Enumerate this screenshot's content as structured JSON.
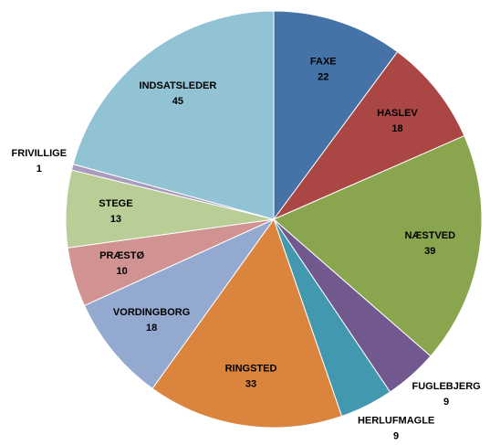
{
  "chart_data": {
    "type": "pie",
    "categories": [
      "FAXE",
      "HASLEV",
      "NÆSTVED",
      "FUGLEBJERG",
      "HERLUFMAGLE",
      "RINGSTED",
      "VORDINGBORG",
      "PRÆSTØ",
      "STEGE",
      "FRIVILLIGE",
      "INDSATSLEDER"
    ],
    "values": [
      22,
      18,
      39,
      9,
      9,
      33,
      18,
      10,
      13,
      1,
      45
    ],
    "colors": [
      "#4572a7",
      "#aa4643",
      "#89a54e",
      "#71588f",
      "#4198af",
      "#db843d",
      "#93a9cf",
      "#d19392",
      "#b9cd96",
      "#a99bbd",
      "#92c3d5"
    ]
  }
}
